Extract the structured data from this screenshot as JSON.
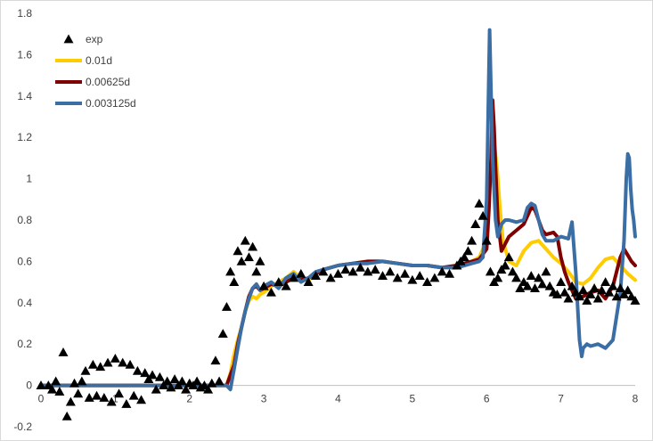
{
  "chart_data": {
    "type": "line",
    "xlim": [
      0,
      8
    ],
    "ylim": [
      -0.2,
      1.8
    ],
    "x_ticks": [
      "0",
      "1",
      "2",
      "3",
      "4",
      "5",
      "6",
      "7",
      "8"
    ],
    "y_ticks": [
      "-0.2",
      "0",
      "0.2",
      "0.4",
      "0.6",
      "0.8",
      "1",
      "1.2",
      "1.4",
      "1.6",
      "1.8"
    ],
    "grid": false,
    "legend_position": "top-left",
    "series": [
      {
        "name": "exp",
        "kind": "scatter",
        "marker": "triangle",
        "color": "#000000",
        "x": [
          0.0,
          0.1,
          0.15,
          0.2,
          0.25,
          0.3,
          0.35,
          0.4,
          0.45,
          0.5,
          0.55,
          0.6,
          0.65,
          0.7,
          0.75,
          0.8,
          0.85,
          0.9,
          0.95,
          1.0,
          1.05,
          1.1,
          1.15,
          1.2,
          1.25,
          1.3,
          1.35,
          1.4,
          1.45,
          1.5,
          1.55,
          1.6,
          1.65,
          1.7,
          1.75,
          1.8,
          1.85,
          1.9,
          1.95,
          2.0,
          2.05,
          2.1,
          2.15,
          2.2,
          2.25,
          2.3,
          2.35,
          2.4,
          2.45,
          2.5,
          2.55,
          2.6,
          2.65,
          2.7,
          2.75,
          2.8,
          2.85,
          2.9,
          2.95,
          3.0,
          3.1,
          3.2,
          3.3,
          3.4,
          3.5,
          3.6,
          3.7,
          3.8,
          3.9,
          4.0,
          4.1,
          4.2,
          4.3,
          4.4,
          4.5,
          4.6,
          4.7,
          4.8,
          4.9,
          5.0,
          5.1,
          5.2,
          5.3,
          5.4,
          5.5,
          5.6,
          5.65,
          5.7,
          5.75,
          5.8,
          5.85,
          5.9,
          5.95,
          6.0,
          6.05,
          6.1,
          6.15,
          6.2,
          6.25,
          6.3,
          6.35,
          6.4,
          6.45,
          6.5,
          6.55,
          6.6,
          6.65,
          6.7,
          6.75,
          6.8,
          6.85,
          6.9,
          6.95,
          7.0,
          7.05,
          7.1,
          7.15,
          7.2,
          7.25,
          7.3,
          7.35,
          7.4,
          7.45,
          7.5,
          7.55,
          7.6,
          7.65,
          7.7,
          7.75,
          7.8,
          7.85,
          7.9,
          7.95,
          8.0
        ],
        "y": [
          0.0,
          0.0,
          -0.02,
          0.02,
          -0.03,
          0.16,
          -0.15,
          -0.08,
          0.01,
          -0.04,
          0.02,
          0.07,
          -0.06,
          0.1,
          -0.05,
          0.09,
          -0.06,
          0.11,
          -0.08,
          0.13,
          -0.04,
          0.11,
          -0.09,
          0.1,
          -0.05,
          0.07,
          -0.07,
          0.06,
          0.03,
          0.05,
          -0.02,
          0.04,
          0.0,
          0.02,
          -0.01,
          0.03,
          0.0,
          0.02,
          -0.02,
          0.01,
          0.0,
          0.02,
          -0.01,
          0.0,
          -0.02,
          0.01,
          0.12,
          0.02,
          0.25,
          0.38,
          0.55,
          0.5,
          0.65,
          0.6,
          0.7,
          0.62,
          0.67,
          0.55,
          0.6,
          0.48,
          0.45,
          0.5,
          0.48,
          0.52,
          0.54,
          0.5,
          0.53,
          0.55,
          0.52,
          0.54,
          0.56,
          0.55,
          0.57,
          0.55,
          0.56,
          0.53,
          0.55,
          0.52,
          0.54,
          0.51,
          0.53,
          0.5,
          0.52,
          0.55,
          0.54,
          0.58,
          0.6,
          0.62,
          0.65,
          0.7,
          0.78,
          0.88,
          0.82,
          0.7,
          0.55,
          0.5,
          0.52,
          0.56,
          0.58,
          0.62,
          0.55,
          0.52,
          0.47,
          0.5,
          0.48,
          0.53,
          0.47,
          0.52,
          0.49,
          0.55,
          0.48,
          0.45,
          0.44,
          0.5,
          0.45,
          0.42,
          0.48,
          0.45,
          0.43,
          0.46,
          0.41,
          0.44,
          0.47,
          0.42,
          0.46,
          0.5,
          0.45,
          0.48,
          0.43,
          0.47,
          0.44,
          0.46,
          0.43,
          0.41
        ]
      },
      {
        "name": "0.01d",
        "kind": "line",
        "color": "#ffcc00",
        "x": [
          0.0,
          2.5,
          2.55,
          2.6,
          2.65,
          2.7,
          2.75,
          2.8,
          2.85,
          2.9,
          2.95,
          3.0,
          3.1,
          3.2,
          3.3,
          3.4,
          3.5,
          3.6,
          3.7,
          3.8,
          4.0,
          4.2,
          4.4,
          4.6,
          4.8,
          5.0,
          5.2,
          5.4,
          5.6,
          5.8,
          5.9,
          6.0,
          6.03,
          6.06,
          6.1,
          6.14,
          6.18,
          6.22,
          6.3,
          6.4,
          6.5,
          6.6,
          6.7,
          6.8,
          6.9,
          7.0,
          7.1,
          7.2,
          7.3,
          7.4,
          7.5,
          7.6,
          7.7,
          7.8,
          7.9,
          8.0
        ],
        "y": [
          0.0,
          0.0,
          0.06,
          0.15,
          0.22,
          0.28,
          0.36,
          0.41,
          0.43,
          0.42,
          0.44,
          0.45,
          0.48,
          0.5,
          0.52,
          0.55,
          0.52,
          0.51,
          0.54,
          0.56,
          0.58,
          0.59,
          0.6,
          0.6,
          0.59,
          0.58,
          0.58,
          0.57,
          0.58,
          0.6,
          0.62,
          0.7,
          0.9,
          1.12,
          1.18,
          1.05,
          0.85,
          0.7,
          0.6,
          0.58,
          0.65,
          0.69,
          0.7,
          0.66,
          0.62,
          0.59,
          0.55,
          0.5,
          0.49,
          0.52,
          0.57,
          0.61,
          0.62,
          0.58,
          0.54,
          0.51
        ]
      },
      {
        "name": "0.00625d",
        "kind": "line",
        "color": "#7f0000",
        "x": [
          0.0,
          2.5,
          2.6,
          2.65,
          2.7,
          2.75,
          2.8,
          2.85,
          2.9,
          2.95,
          3.0,
          3.1,
          3.2,
          3.3,
          3.4,
          3.5,
          3.6,
          3.7,
          3.8,
          4.0,
          4.2,
          4.4,
          4.6,
          4.8,
          5.0,
          5.2,
          5.4,
          5.6,
          5.8,
          5.9,
          6.0,
          6.03,
          6.06,
          6.08,
          6.1,
          6.12,
          6.15,
          6.2,
          6.3,
          6.4,
          6.5,
          6.55,
          6.6,
          6.65,
          6.7,
          6.75,
          6.8,
          6.9,
          6.95,
          7.0,
          7.05,
          7.1,
          7.2,
          7.3,
          7.4,
          7.5,
          7.6,
          7.7,
          7.8,
          7.85,
          7.9,
          7.95,
          8.0
        ],
        "y": [
          0.0,
          0.0,
          0.1,
          0.2,
          0.28,
          0.36,
          0.43,
          0.47,
          0.48,
          0.46,
          0.47,
          0.49,
          0.48,
          0.5,
          0.52,
          0.51,
          0.52,
          0.54,
          0.56,
          0.58,
          0.59,
          0.6,
          0.6,
          0.59,
          0.58,
          0.58,
          0.57,
          0.58,
          0.6,
          0.61,
          0.66,
          0.85,
          1.1,
          1.38,
          1.25,
          1.05,
          0.8,
          0.65,
          0.72,
          0.75,
          0.78,
          0.82,
          0.86,
          0.85,
          0.8,
          0.75,
          0.73,
          0.74,
          0.72,
          0.62,
          0.55,
          0.5,
          0.42,
          0.43,
          0.45,
          0.46,
          0.42,
          0.48,
          0.62,
          0.66,
          0.63,
          0.6,
          0.58
        ]
      },
      {
        "name": "0.003125d",
        "kind": "line",
        "color": "#3a6ea5",
        "x": [
          0.0,
          2.5,
          2.55,
          2.6,
          2.65,
          2.7,
          2.75,
          2.8,
          2.85,
          2.9,
          2.95,
          3.0,
          3.1,
          3.2,
          3.3,
          3.4,
          3.5,
          3.6,
          3.7,
          3.8,
          4.0,
          4.2,
          4.4,
          4.6,
          4.8,
          5.0,
          5.2,
          5.4,
          5.6,
          5.8,
          5.9,
          5.95,
          6.0,
          6.02,
          6.04,
          6.06,
          6.08,
          6.1,
          6.12,
          6.15,
          6.2,
          6.25,
          6.3,
          6.4,
          6.5,
          6.55,
          6.6,
          6.65,
          6.7,
          6.75,
          6.8,
          6.9,
          7.0,
          7.1,
          7.15,
          7.2,
          7.23,
          7.25,
          7.28,
          7.3,
          7.35,
          7.4,
          7.5,
          7.6,
          7.7,
          7.8,
          7.85,
          7.88,
          7.9,
          7.92,
          7.94,
          7.96,
          7.98,
          8.0
        ],
        "y": [
          0.0,
          0.0,
          -0.02,
          0.08,
          0.18,
          0.28,
          0.36,
          0.42,
          0.47,
          0.49,
          0.46,
          0.48,
          0.5,
          0.47,
          0.52,
          0.54,
          0.5,
          0.52,
          0.55,
          0.56,
          0.58,
          0.59,
          0.59,
          0.6,
          0.59,
          0.58,
          0.58,
          0.57,
          0.57,
          0.59,
          0.6,
          0.62,
          0.9,
          1.3,
          1.72,
          1.4,
          1.1,
          0.95,
          0.8,
          0.72,
          0.78,
          0.8,
          0.8,
          0.79,
          0.8,
          0.86,
          0.88,
          0.87,
          0.8,
          0.73,
          0.7,
          0.7,
          0.72,
          0.71,
          0.79,
          0.55,
          0.35,
          0.22,
          0.14,
          0.18,
          0.2,
          0.19,
          0.2,
          0.18,
          0.22,
          0.45,
          0.7,
          1.0,
          1.12,
          1.1,
          0.95,
          0.85,
          0.8,
          0.72
        ]
      }
    ]
  }
}
